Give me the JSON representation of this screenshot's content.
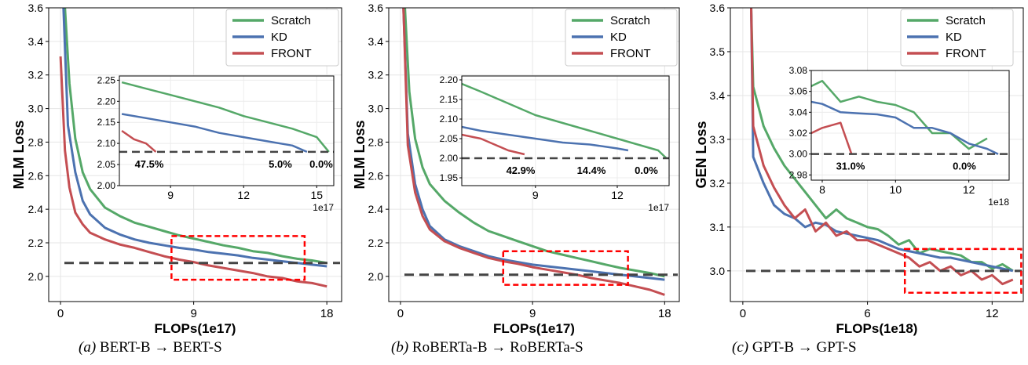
{
  "legend_labels": [
    "Scratch",
    "KD",
    "FRONT"
  ],
  "colors": {
    "Scratch": "#55a868",
    "KD": "#4c72b0",
    "FRONT": "#c44e52",
    "threshold": "#444444",
    "zoom_box": "#ff0000"
  },
  "captions": [
    {
      "tag": "(a)",
      "text": "BERT-B → BERT-S"
    },
    {
      "tag": "(b)",
      "text": "RoBERTa-B → RoBERTa-S"
    },
    {
      "tag": "(c)",
      "text": "GPT-B → GPT-S"
    }
  ],
  "chart_data": [
    {
      "type": "line",
      "xlabel": "FLOPs(1e17)",
      "ylabel": "MLM Loss",
      "xlim": [
        -0.8,
        19
      ],
      "ylim": [
        1.85,
        3.6
      ],
      "xticks": [
        0,
        9,
        18
      ],
      "yticks": [
        2.0,
        2.2,
        2.4,
        2.6,
        2.8,
        3.0,
        3.2,
        3.4,
        3.6
      ],
      "ytick_labels": [
        "2.0",
        "2.2",
        "2.4",
        "2.6",
        "2.8",
        "3.0",
        "3.2",
        "3.4",
        "3.6"
      ],
      "legend": "top-right",
      "grid": true,
      "threshold": 2.08,
      "series": [
        {
          "name": "Scratch",
          "x": [
            0.3,
            0.6,
            1,
            1.5,
            2,
            3,
            4,
            5,
            6,
            7,
            8,
            9,
            10,
            11,
            12,
            13,
            14,
            15,
            16,
            17,
            18
          ],
          "y": [
            3.6,
            3.15,
            2.82,
            2.62,
            2.52,
            2.41,
            2.36,
            2.32,
            2.295,
            2.27,
            2.245,
            2.225,
            2.205,
            2.185,
            2.17,
            2.15,
            2.14,
            2.12,
            2.105,
            2.095,
            2.08
          ]
        },
        {
          "name": "KD",
          "x": [
            0.2,
            0.5,
            1,
            1.5,
            2,
            3,
            4,
            5,
            6,
            7,
            8,
            9,
            10,
            11,
            12,
            13,
            14,
            15,
            16,
            17,
            18
          ],
          "y": [
            3.6,
            2.9,
            2.62,
            2.45,
            2.37,
            2.29,
            2.25,
            2.22,
            2.2,
            2.185,
            2.17,
            2.16,
            2.145,
            2.135,
            2.125,
            2.11,
            2.1,
            2.09,
            2.08,
            2.07,
            2.06
          ]
        },
        {
          "name": "FRONT",
          "x": [
            0,
            0.3,
            0.6,
            1,
            1.5,
            2,
            3,
            4,
            5,
            6,
            7,
            8,
            9,
            10,
            11,
            12,
            13,
            14,
            15,
            16,
            17,
            18
          ],
          "y": [
            3.31,
            2.75,
            2.53,
            2.38,
            2.31,
            2.26,
            2.22,
            2.19,
            2.17,
            2.145,
            2.12,
            2.1,
            2.085,
            2.065,
            2.05,
            2.035,
            2.02,
            2,
            1.99,
            1.97,
            1.96,
            1.94
          ]
        }
      ],
      "zoom_region": {
        "x": [
          7.5,
          16.5
        ],
        "y": [
          1.98,
          2.24
        ]
      },
      "inset": {
        "xlim": [
          6.9,
          15.7
        ],
        "ylim": [
          2.0,
          2.26
        ],
        "xticks": [
          9,
          12,
          15
        ],
        "yticks": [
          2.0,
          2.05,
          2.1,
          2.15,
          2.2,
          2.25
        ],
        "ytick_labels": [
          "2.00",
          "2.05",
          "2.10",
          "2.15",
          "2.20",
          "2.25"
        ],
        "xscale_label": "1e17",
        "threshold": 2.08,
        "series": [
          {
            "name": "Scratch",
            "x": [
              7,
              8,
              9,
              10,
              11,
              12,
              13,
              14,
              15,
              15.5
            ],
            "y": [
              2.245,
              2.23,
              2.215,
              2.2,
              2.185,
              2.165,
              2.15,
              2.135,
              2.115,
              2.08
            ]
          },
          {
            "name": "KD",
            "x": [
              7,
              8,
              9,
              10,
              11,
              12,
              13,
              14,
              14.6
            ],
            "y": [
              2.17,
              2.16,
              2.15,
              2.14,
              2.125,
              2.115,
              2.105,
              2.095,
              2.08
            ]
          },
          {
            "name": "FRONT",
            "x": [
              7,
              7.5,
              8,
              8.4
            ],
            "y": [
              2.13,
              2.11,
              2.1,
              2.08
            ]
          }
        ],
        "annotations": [
          "47.5%",
          "5.0%",
          "0.0%"
        ]
      }
    },
    {
      "type": "line",
      "xlabel": "FLOPs(1e17)",
      "ylabel": "MLM Loss",
      "xlim": [
        -0.8,
        19
      ],
      "ylim": [
        1.85,
        3.6
      ],
      "xticks": [
        0,
        9,
        18
      ],
      "yticks": [
        2.0,
        2.2,
        2.4,
        2.6,
        2.8,
        3.0,
        3.2,
        3.4,
        3.6
      ],
      "ytick_labels": [
        "2.0",
        "2.2",
        "2.4",
        "2.6",
        "2.8",
        "3.0",
        "3.2",
        "3.4",
        "3.6"
      ],
      "legend": "top-right",
      "grid": true,
      "threshold": 2.01,
      "series": [
        {
          "name": "Scratch",
          "x": [
            0.3,
            0.6,
            1,
            1.5,
            2,
            3,
            4,
            5,
            6,
            7,
            8,
            9,
            10,
            11,
            12,
            13,
            14,
            15,
            16,
            17,
            18
          ],
          "y": [
            3.6,
            3.1,
            2.82,
            2.65,
            2.55,
            2.45,
            2.38,
            2.32,
            2.27,
            2.24,
            2.21,
            2.18,
            2.15,
            2.13,
            2.11,
            2.09,
            2.07,
            2.05,
            2.035,
            2.02,
            2.0
          ]
        },
        {
          "name": "KD",
          "x": [
            0.2,
            0.5,
            1,
            1.5,
            2,
            3,
            4,
            5,
            6,
            7,
            8,
            9,
            10,
            11,
            12,
            13,
            14,
            15,
            16,
            17,
            18
          ],
          "y": [
            3.6,
            2.85,
            2.55,
            2.4,
            2.3,
            2.22,
            2.18,
            2.15,
            2.12,
            2.1,
            2.085,
            2.07,
            2.06,
            2.05,
            2.04,
            2.03,
            2.02,
            2.01,
            2.0,
            1.99,
            1.98
          ]
        },
        {
          "name": "FRONT",
          "x": [
            0.2,
            0.5,
            1,
            1.5,
            2,
            3,
            4,
            5,
            6,
            7,
            8,
            9,
            10,
            11,
            12,
            13,
            14,
            15,
            16,
            17,
            18
          ],
          "y": [
            3.6,
            2.78,
            2.5,
            2.36,
            2.28,
            2.21,
            2.17,
            2.14,
            2.11,
            2.09,
            2.075,
            2.055,
            2.04,
            2.025,
            2.01,
            1.99,
            1.975,
            1.96,
            1.94,
            1.92,
            1.89
          ]
        }
      ],
      "zoom_region": {
        "x": [
          7,
          15.5
        ],
        "y": [
          1.95,
          2.15
        ]
      },
      "inset": {
        "xlim": [
          6.3,
          13.9
        ],
        "ylim": [
          1.93,
          2.21
        ],
        "xticks": [
          9,
          12
        ],
        "yticks": [
          1.95,
          2.0,
          2.05,
          2.1,
          2.15,
          2.2
        ],
        "ytick_labels": [
          "1.95",
          "2.00",
          "2.05",
          "2.10",
          "2.15",
          "2.20"
        ],
        "xscale_label": "1e17",
        "threshold": 2.0,
        "series": [
          {
            "name": "Scratch",
            "x": [
              6.3,
              7,
              8,
              9,
              10,
              11,
              12,
              13,
              13.5,
              13.8
            ],
            "y": [
              2.19,
              2.17,
              2.14,
              2.11,
              2.09,
              2.07,
              2.05,
              2.03,
              2.02,
              2.0
            ]
          },
          {
            "name": "KD",
            "x": [
              6.3,
              7,
              8,
              9,
              10,
              11,
              12,
              12.4
            ],
            "y": [
              2.08,
              2.07,
              2.06,
              2.05,
              2.04,
              2.035,
              2.025,
              2.02
            ]
          },
          {
            "name": "FRONT",
            "x": [
              6.3,
              7,
              7.5,
              8,
              8.6
            ],
            "y": [
              2.06,
              2.05,
              2.035,
              2.02,
              2.01
            ]
          }
        ],
        "annotations": [
          "42.9%",
          "14.4%",
          "0.0%"
        ]
      }
    },
    {
      "type": "line",
      "xlabel": "FLOPs(1e18)",
      "ylabel": "GEN Loss",
      "xlim": [
        -0.6,
        13.5
      ],
      "ylim": [
        2.93,
        3.6
      ],
      "xticks": [
        0,
        6,
        12
      ],
      "yticks": [
        3.0,
        3.1,
        3.2,
        3.3,
        3.4,
        3.5,
        3.6
      ],
      "ytick_labels": [
        "3.0",
        "3.1",
        "3.2",
        "3.3",
        "3.4",
        "3.5",
        "3.6"
      ],
      "legend": "top-right",
      "grid": true,
      "threshold": 3.0,
      "series": [
        {
          "name": "Scratch",
          "x": [
            0.4,
            0.5,
            1,
            1.5,
            2,
            2.5,
            3,
            3.5,
            4,
            4.5,
            5,
            5.5,
            6,
            6.5,
            7,
            7.5,
            8,
            8.5,
            9,
            9.5,
            10,
            10.5,
            11,
            11.5,
            12,
            12.5,
            13
          ],
          "y": [
            3.6,
            3.42,
            3.33,
            3.28,
            3.24,
            3.21,
            3.18,
            3.15,
            3.12,
            3.14,
            3.12,
            3.11,
            3.1,
            3.095,
            3.08,
            3.06,
            3.07,
            3.04,
            3.05,
            3.045,
            3.04,
            3.035,
            3.02,
            3.02,
            3.005,
            3.015,
            3.0
          ]
        },
        {
          "name": "KD",
          "x": [
            0.4,
            0.5,
            1,
            1.5,
            2,
            2.5,
            3,
            3.5,
            4,
            4.5,
            5,
            5.5,
            6,
            6.5,
            7,
            7.5,
            8,
            8.5,
            9,
            9.5,
            10,
            10.5,
            11,
            11.5,
            12,
            12.5,
            13
          ],
          "y": [
            3.6,
            3.26,
            3.2,
            3.15,
            3.13,
            3.12,
            3.1,
            3.11,
            3.105,
            3.09,
            3.085,
            3.08,
            3.075,
            3.07,
            3.06,
            3.05,
            3.045,
            3.04,
            3.035,
            3.03,
            3.03,
            3.025,
            3.02,
            3.015,
            3.01,
            3.005,
            3.0
          ]
        },
        {
          "name": "FRONT",
          "x": [
            0.4,
            0.5,
            1,
            1.5,
            2,
            2.5,
            3,
            3.5,
            4,
            4.5,
            5,
            5.5,
            6,
            6.5,
            7,
            7.5,
            8,
            8.5,
            9,
            9.5,
            10,
            10.5,
            11,
            11.5,
            12,
            12.5,
            13
          ],
          "y": [
            3.6,
            3.33,
            3.24,
            3.19,
            3.15,
            3.12,
            3.14,
            3.09,
            3.11,
            3.08,
            3.09,
            3.07,
            3.07,
            3.06,
            3.05,
            3.04,
            3.03,
            3.01,
            3.02,
            3.0,
            3.01,
            2.99,
            3.0,
            2.98,
            2.99,
            2.97,
            2.98
          ]
        }
      ],
      "zoom_region": {
        "x": [
          7.8,
          13.4
        ],
        "y": [
          2.95,
          3.05
        ]
      },
      "inset": {
        "xlim": [
          7.7,
          13.1
        ],
        "ylim": [
          2.975,
          3.08
        ],
        "xticks": [
          8,
          10,
          12
        ],
        "yticks": [
          2.98,
          3.0,
          3.02,
          3.04,
          3.06,
          3.08
        ],
        "ytick_labels": [
          "2.98",
          "3.00",
          "3.02",
          "3.04",
          "3.06",
          "3.08"
        ],
        "xscale_label": "1e18",
        "threshold": 3.0,
        "series": [
          {
            "name": "Scratch",
            "x": [
              7.7,
              8,
              8.5,
              9,
              9.5,
              10,
              10.5,
              11,
              11.5,
              12,
              12.5
            ],
            "y": [
              3.065,
              3.07,
              3.05,
              3.055,
              3.05,
              3.047,
              3.04,
              3.02,
              3.02,
              3.005,
              3.015
            ]
          },
          {
            "name": "KD",
            "x": [
              7.7,
              8,
              8.5,
              9,
              9.5,
              10,
              10.5,
              11,
              11.5,
              12,
              12.5,
              12.8
            ],
            "y": [
              3.05,
              3.048,
              3.04,
              3.039,
              3.038,
              3.035,
              3.025,
              3.025,
              3.02,
              3.01,
              3.005,
              3.0
            ]
          },
          {
            "name": "FRONT",
            "x": [
              7.7,
              8,
              8.5,
              8.8
            ],
            "y": [
              3.02,
              3.025,
              3.03,
              3.0
            ]
          }
        ],
        "annotations": [
          "31.0%",
          "0.0%"
        ]
      }
    }
  ]
}
